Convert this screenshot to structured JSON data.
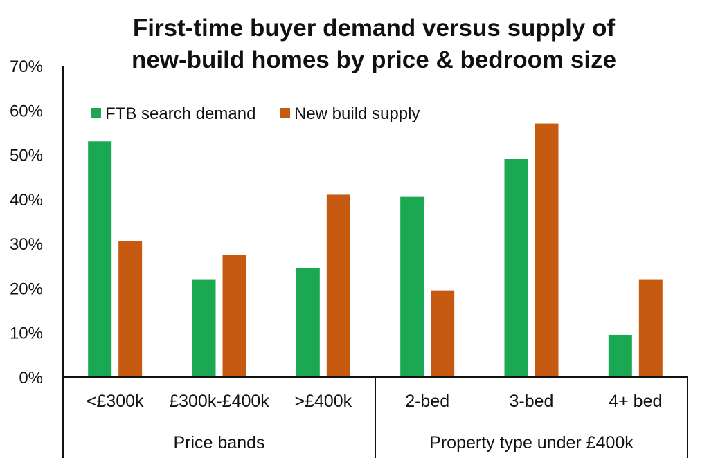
{
  "chart_data": {
    "type": "bar",
    "title_lines": [
      "First-time buyer demand versus supply of",
      "new-build homes by price & bedroom size"
    ],
    "categories": [
      "<£300k",
      "£300k-£400k",
      ">£400k",
      "2-bed",
      "3-bed",
      "4+ bed"
    ],
    "groups": [
      {
        "label": "Price bands",
        "categories": [
          "<£300k",
          "£300k-£400k",
          ">£400k"
        ]
      },
      {
        "label": "Property type under £400k",
        "categories": [
          "2-bed",
          "3-bed",
          "4+ bed"
        ]
      }
    ],
    "series": [
      {
        "name": "FTB search demand",
        "color": "#1aa852",
        "values": [
          53,
          22,
          24.5,
          40.5,
          49,
          9.5
        ]
      },
      {
        "name": "New build supply",
        "color": "#c65a11",
        "values": [
          30.5,
          27.5,
          41,
          19.5,
          57,
          22
        ]
      }
    ],
    "yticks": [
      "0%",
      "10%",
      "20%",
      "30%",
      "40%",
      "50%",
      "60%",
      "70%"
    ],
    "ylim": [
      0,
      70
    ],
    "legend_position": "top-left",
    "grid": false
  }
}
